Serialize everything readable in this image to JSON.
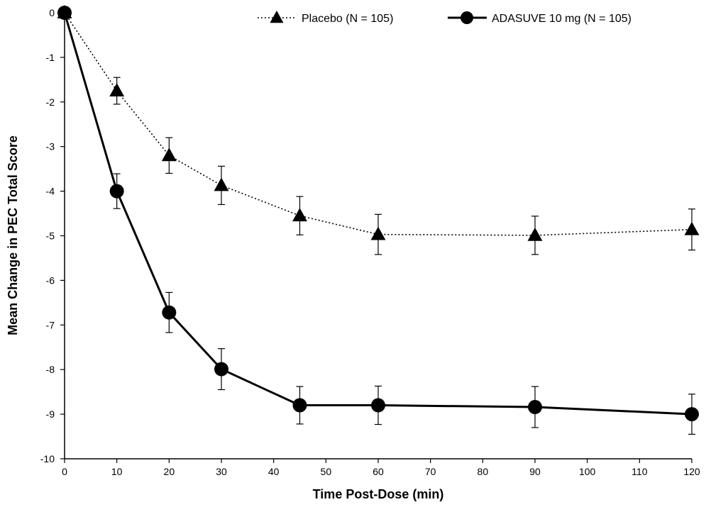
{
  "chart_data": {
    "type": "line",
    "xlabel": "Time Post-Dose (min)",
    "ylabel": "Mean Change in PEC Total Score",
    "xlim": [
      0,
      120
    ],
    "ylim": [
      -10,
      0
    ],
    "xticks": [
      0,
      10,
      20,
      30,
      40,
      50,
      60,
      70,
      80,
      90,
      100,
      110,
      120
    ],
    "yticks": [
      0,
      -1,
      -2,
      -3,
      -4,
      -5,
      -6,
      -7,
      -8,
      -9,
      -10
    ],
    "grid": false,
    "legend_position": "top",
    "series": [
      {
        "name": "Placebo (N = 105)",
        "style": "dotted",
        "marker": "triangle",
        "color": "#000000",
        "x": [
          0,
          10,
          20,
          30,
          45,
          60,
          90,
          120
        ],
        "y": [
          0,
          -1.75,
          -3.2,
          -3.87,
          -4.55,
          -4.97,
          -4.99,
          -4.86
        ],
        "error": [
          0,
          0.3,
          0.4,
          0.43,
          0.43,
          0.45,
          0.43,
          0.46
        ]
      },
      {
        "name": "ADASUVE 10 mg (N = 105)",
        "style": "solid",
        "marker": "circle",
        "color": "#000000",
        "x": [
          0,
          10,
          20,
          30,
          45,
          60,
          90,
          120
        ],
        "y": [
          0,
          -4.0,
          -6.72,
          -7.99,
          -8.8,
          -8.8,
          -8.84,
          -9.0
        ],
        "error": [
          0,
          0.39,
          0.45,
          0.46,
          0.42,
          0.43,
          0.46,
          0.45
        ]
      }
    ]
  }
}
